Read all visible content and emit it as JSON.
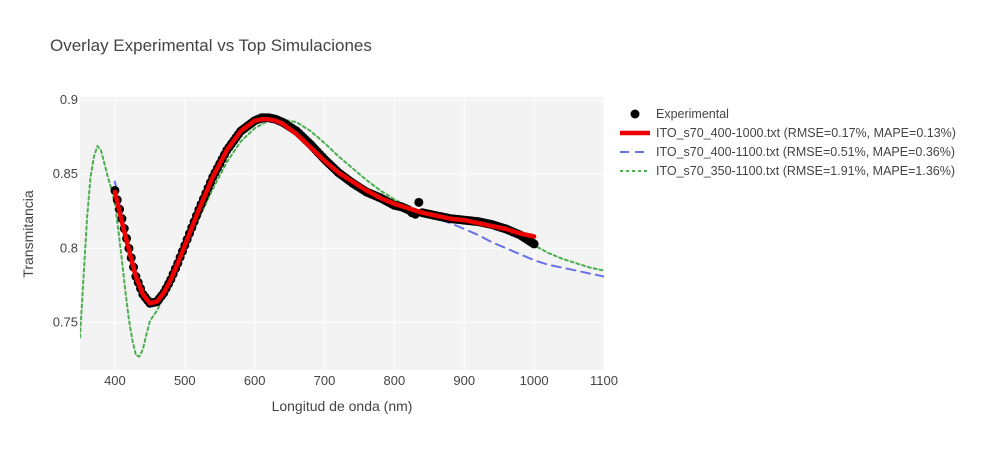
{
  "chart_data": {
    "type": "line",
    "title": "Overlay Experimental vs Top Simulaciones",
    "xlabel": "Longitud de onda (nm)",
    "ylabel": "Transmitancia",
    "xlim": [
      350,
      1100
    ],
    "ylim": [
      0.718,
      0.902
    ],
    "xticks": [
      400,
      500,
      600,
      700,
      800,
      900,
      1000,
      1100
    ],
    "yticks": [
      0.75,
      0.8,
      0.85,
      0.9
    ],
    "ytick_labels": [
      "0.75",
      "0.8",
      "0.85",
      "0.9"
    ],
    "grid": true,
    "legend_position": "right",
    "series": [
      {
        "name": "Experimental",
        "style": "markers",
        "color": "#000000",
        "x": [
          400,
          410,
          420,
          430,
          440,
          450,
          460,
          470,
          480,
          490,
          500,
          520,
          540,
          560,
          580,
          600,
          610,
          620,
          630,
          640,
          660,
          680,
          700,
          720,
          740,
          760,
          780,
          800,
          810,
          820,
          825,
          830,
          835,
          840,
          860,
          880,
          900,
          920,
          940,
          960,
          980,
          1000
        ],
        "y": [
          0.839,
          0.82,
          0.8,
          0.781,
          0.769,
          0.763,
          0.764,
          0.77,
          0.779,
          0.79,
          0.802,
          0.826,
          0.848,
          0.866,
          0.879,
          0.886,
          0.888,
          0.888,
          0.887,
          0.885,
          0.879,
          0.87,
          0.86,
          0.851,
          0.844,
          0.838,
          0.834,
          0.829,
          0.828,
          0.826,
          0.824,
          0.823,
          0.831,
          0.824,
          0.822,
          0.82,
          0.819,
          0.818,
          0.816,
          0.813,
          0.809,
          0.803
        ]
      },
      {
        "name": "ITO_s70_400-1000.txt (RMSE=0.17%, MAPE=0.13%)",
        "style": "solid",
        "color": "#ee0000",
        "x": [
          400,
          410,
          420,
          430,
          440,
          450,
          460,
          470,
          480,
          490,
          500,
          520,
          540,
          560,
          580,
          600,
          610,
          620,
          630,
          640,
          660,
          680,
          700,
          720,
          740,
          760,
          780,
          800,
          820,
          840,
          860,
          880,
          900,
          920,
          940,
          960,
          980,
          1000
        ],
        "y": [
          0.838,
          0.818,
          0.799,
          0.781,
          0.769,
          0.763,
          0.764,
          0.77,
          0.779,
          0.79,
          0.802,
          0.826,
          0.848,
          0.866,
          0.879,
          0.886,
          0.887,
          0.887,
          0.886,
          0.884,
          0.877,
          0.868,
          0.859,
          0.851,
          0.845,
          0.839,
          0.834,
          0.83,
          0.827,
          0.824,
          0.822,
          0.82,
          0.819,
          0.817,
          0.815,
          0.813,
          0.81,
          0.808
        ]
      },
      {
        "name": "ITO_s70_400-1100.txt (RMSE=0.51%, MAPE=0.36%)",
        "style": "dash",
        "color": "#6670e8",
        "x": [
          400,
          410,
          420,
          430,
          440,
          450,
          460,
          470,
          480,
          490,
          500,
          520,
          540,
          560,
          580,
          600,
          620,
          640,
          660,
          680,
          700,
          720,
          740,
          760,
          780,
          800,
          820,
          840,
          860,
          880,
          900,
          920,
          940,
          960,
          980,
          1000,
          1020,
          1040,
          1060,
          1080,
          1100
        ],
        "y": [
          0.845,
          0.822,
          0.801,
          0.783,
          0.77,
          0.764,
          0.764,
          0.769,
          0.778,
          0.789,
          0.8,
          0.824,
          0.846,
          0.864,
          0.877,
          0.884,
          0.886,
          0.883,
          0.876,
          0.867,
          0.858,
          0.85,
          0.844,
          0.839,
          0.835,
          0.831,
          0.827,
          0.823,
          0.82,
          0.817,
          0.813,
          0.809,
          0.804,
          0.8,
          0.796,
          0.792,
          0.789,
          0.787,
          0.785,
          0.783,
          0.781
        ]
      },
      {
        "name": "ITO_s70_350-1100.txt (RMSE=1.91%, MAPE=1.36%)",
        "style": "dot",
        "color": "#4caf50",
        "x": [
          350,
          355,
          360,
          365,
          370,
          375,
          380,
          385,
          390,
          395,
          400,
          405,
          410,
          415,
          420,
          425,
          430,
          435,
          440,
          445,
          450,
          460,
          470,
          480,
          490,
          500,
          520,
          540,
          560,
          580,
          600,
          620,
          640,
          660,
          680,
          700,
          720,
          740,
          760,
          780,
          800,
          820,
          840,
          860,
          880,
          900,
          920,
          940,
          960,
          980,
          1000,
          1020,
          1040,
          1060,
          1080,
          1100
        ],
        "y": [
          0.74,
          0.78,
          0.82,
          0.848,
          0.862,
          0.869,
          0.866,
          0.857,
          0.848,
          0.84,
          0.83,
          0.812,
          0.792,
          0.771,
          0.752,
          0.738,
          0.728,
          0.727,
          0.732,
          0.742,
          0.751,
          0.758,
          0.767,
          0.777,
          0.787,
          0.798,
          0.82,
          0.84,
          0.858,
          0.872,
          0.881,
          0.886,
          0.887,
          0.885,
          0.879,
          0.871,
          0.862,
          0.854,
          0.846,
          0.839,
          0.833,
          0.828,
          0.825,
          0.823,
          0.822,
          0.821,
          0.819,
          0.816,
          0.812,
          0.807,
          0.802,
          0.797,
          0.793,
          0.79,
          0.787,
          0.785
        ]
      }
    ]
  }
}
